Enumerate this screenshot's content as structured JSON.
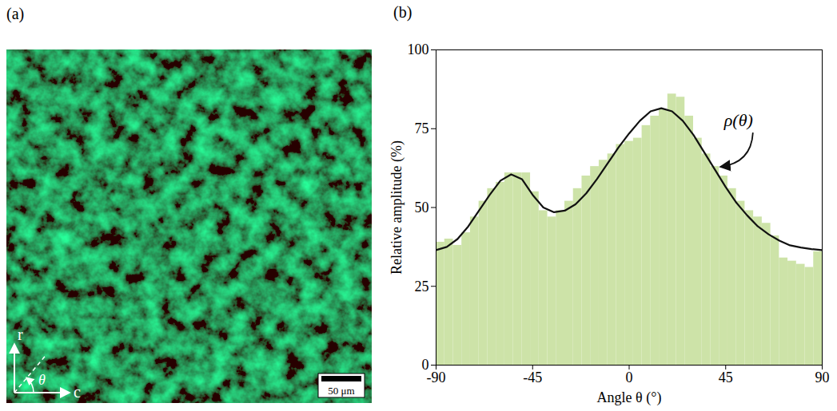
{
  "chart_data": [
    {
      "type": "image",
      "panel": "(a)",
      "axis_labels": {
        "vertical": "r",
        "horizontal": "c",
        "angle": "θ"
      },
      "scale_bar": "50 μm"
    },
    {
      "type": "histogram",
      "panel": "(b)",
      "xlabel": "Angle θ (°)",
      "ylabel": "Relative amplitude (%)",
      "bins": [
        -90,
        -86,
        -82,
        -78,
        -74,
        -70,
        -66,
        -62,
        -58,
        -54,
        -50,
        -46,
        -42,
        -38,
        -34,
        -30,
        -26,
        -22,
        -18,
        -14,
        -10,
        -6,
        -2,
        2,
        6,
        10,
        14,
        18,
        22,
        26,
        30,
        34,
        38,
        42,
        46,
        50,
        54,
        58,
        62,
        66,
        70,
        74,
        78,
        82,
        86,
        90
      ],
      "counts": [
        39,
        40,
        38,
        42,
        47,
        52,
        56,
        58,
        61,
        61,
        61,
        55,
        49,
        47,
        49,
        52,
        56,
        60,
        63,
        65,
        67,
        70,
        71,
        72,
        76,
        79,
        81,
        86,
        85,
        79,
        72,
        67,
        63,
        60,
        56,
        52,
        49,
        47,
        45,
        41,
        34,
        33,
        32,
        31,
        36
      ],
      "color": "#cde3a8",
      "xlim": [
        -90,
        90
      ],
      "xticks": [
        -90,
        -45,
        0,
        45,
        90
      ],
      "ylim": [
        0,
        100
      ],
      "yticks": [
        0,
        25,
        50,
        75,
        100
      ],
      "series": [
        {
          "name": "ρ(θ)",
          "type": "line",
          "color": "#111111",
          "x": [
            -90,
            -85,
            -80,
            -75,
            -70,
            -65,
            -60,
            -55,
            -50,
            -45,
            -40,
            -35,
            -30,
            -25,
            -20,
            -15,
            -10,
            -5,
            0,
            5,
            10,
            15,
            20,
            25,
            30,
            35,
            40,
            45,
            50,
            55,
            60,
            65,
            70,
            75,
            80,
            85,
            90
          ],
          "values": [
            36.5,
            37.5,
            40,
            44,
            49,
            54,
            58.5,
            60.5,
            59,
            54,
            50,
            48.5,
            49,
            51,
            54.5,
            59,
            64,
            69,
            73.5,
            77.5,
            80.5,
            81.5,
            80.5,
            77.5,
            73,
            67.5,
            62,
            56.5,
            51.5,
            47.5,
            44,
            41.5,
            39.5,
            38,
            37.3,
            36.8,
            36.5
          ]
        }
      ]
    }
  ]
}
